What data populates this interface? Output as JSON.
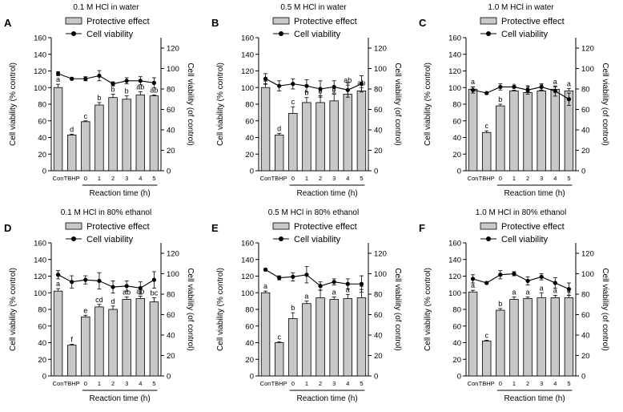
{
  "figure": {
    "legend": {
      "bar_label": "Protective effect",
      "line_label": "Cell viability"
    },
    "axes": {
      "left_label": "Cell viability (% control)",
      "right_label": "Cell viability (of control)",
      "x_label": "Reaction time (h)",
      "left_ticks": [
        "0",
        "20",
        "40",
        "60",
        "80",
        "100",
        "120",
        "140",
        "160"
      ],
      "right_ticks": [
        "0",
        "20",
        "40",
        "60",
        "80",
        "100",
        "120"
      ],
      "categories": [
        "Con",
        "TBHP",
        "0",
        "1",
        "2",
        "3",
        "4",
        "5"
      ]
    },
    "colors": {
      "bar_fill": "#c8c8c8",
      "line": "#000000"
    }
  },
  "chart_data": [
    {
      "type": "bar",
      "panel_label": "A",
      "title": "0.1 M HCl in water",
      "categories": [
        "Con",
        "TBHP",
        "0",
        "1",
        "2",
        "3",
        "4",
        "5"
      ],
      "ylim": [
        0,
        160
      ],
      "y2lim": [
        0,
        120
      ],
      "series": [
        {
          "name": "Protective effect",
          "axis": "left",
          "values": [
            100,
            43,
            59,
            79,
            88,
            86,
            91,
            90
          ],
          "errors": [
            4,
            1,
            1,
            3,
            4,
            4,
            4,
            1
          ],
          "labels": [
            "a",
            "d",
            "c",
            "b",
            "b",
            "b",
            "ab",
            "ab"
          ]
        },
        {
          "name": "Cell viability",
          "axis": "right",
          "points_at": [
            "Con",
            "TBHP",
            "0",
            "1",
            "2",
            "3",
            "4",
            "5"
          ],
          "values": [
            95,
            90,
            90,
            93,
            85,
            88,
            88,
            86
          ],
          "errors": [
            2,
            1,
            2,
            5,
            2,
            3,
            4,
            5
          ]
        }
      ]
    },
    {
      "type": "bar",
      "panel_label": "B",
      "title": "0.5 M HCl in water",
      "categories": [
        "Con",
        "TBHP",
        "0",
        "1",
        "2",
        "3",
        "4",
        "5"
      ],
      "ylim": [
        0,
        160
      ],
      "y2lim": [
        0,
        120
      ],
      "series": [
        {
          "name": "Protective effect",
          "axis": "left",
          "values": [
            100,
            43,
            69,
            82,
            82,
            84,
            92,
            96
          ],
          "errors": [
            4,
            2,
            8,
            6,
            8,
            8,
            11,
            4
          ],
          "labels": [
            "a",
            "d",
            "c",
            "b",
            "b",
            "b",
            "ab",
            "ab"
          ]
        },
        {
          "name": "Cell viability",
          "axis": "right",
          "points_at": [
            "Con",
            "TBHP",
            "0",
            "1",
            "2",
            "3",
            "4",
            "5"
          ],
          "values": [
            90,
            83,
            85,
            83,
            80,
            82,
            79,
            85
          ],
          "errors": [
            5,
            5,
            5,
            6,
            8,
            6,
            7,
            8
          ]
        }
      ]
    },
    {
      "type": "bar",
      "panel_label": "C",
      "title": "1.0 M HCl in water",
      "categories": [
        "Con",
        "TBHP",
        "0",
        "1",
        "2",
        "3",
        "4",
        "5"
      ],
      "ylim": [
        0,
        160
      ],
      "y2lim": [
        0,
        120
      ],
      "series": [
        {
          "name": "Protective effect",
          "axis": "left",
          "values": [
            98,
            46,
            78,
            96,
            94,
            96,
            98,
            96
          ],
          "errors": [
            3,
            2,
            2,
            1,
            1,
            1,
            3,
            3
          ],
          "labels": [
            "a",
            "c",
            "b",
            "a",
            "a",
            "a",
            "a",
            "a"
          ]
        },
        {
          "name": "Cell viability",
          "axis": "right",
          "points_at": [
            "Con",
            "TBHP",
            "0",
            "1",
            "2",
            "3",
            "4",
            "5"
          ],
          "values": [
            79,
            76,
            82,
            82,
            79,
            82,
            78,
            70
          ],
          "errors": [
            3,
            1,
            3,
            1,
            4,
            3,
            5,
            6
          ]
        }
      ]
    },
    {
      "type": "bar",
      "panel_label": "D",
      "title": "0.1 M HCl in 80% ethanol",
      "categories": [
        "Con",
        "TBHP",
        "0",
        "1",
        "2",
        "3",
        "4",
        "5"
      ],
      "ylim": [
        0,
        160
      ],
      "y2lim": [
        0,
        120
      ],
      "series": [
        {
          "name": "Protective effect",
          "axis": "left",
          "values": [
            102,
            37,
            71,
            83,
            80,
            92,
            93,
            89
          ],
          "errors": [
            3,
            1,
            2,
            3,
            4,
            3,
            3,
            5
          ],
          "labels": [
            "a",
            "f",
            "e",
            "cd",
            "d",
            "ab",
            "ab",
            "bc"
          ]
        },
        {
          "name": "Cell viability",
          "axis": "right",
          "points_at": [
            "Con",
            "TBHP",
            "0",
            "1",
            "2",
            "3",
            "4",
            "5"
          ],
          "values": [
            99,
            92,
            94,
            93,
            87,
            88,
            86,
            94
          ],
          "errors": [
            4,
            6,
            4,
            8,
            6,
            5,
            6,
            8
          ]
        }
      ]
    },
    {
      "type": "bar",
      "panel_label": "E",
      "title": "0.5 M HCl in 80% ethanol",
      "categories": [
        "Con",
        "TBHP",
        "0",
        "1",
        "2",
        "3",
        "4",
        "5"
      ],
      "ylim": [
        0,
        160
      ],
      "y2lim": [
        0,
        120
      ],
      "series": [
        {
          "name": "Protective effect",
          "axis": "left",
          "values": [
            100,
            40,
            69,
            87,
            94,
            92,
            93,
            94
          ],
          "errors": [
            2,
            1,
            7,
            3,
            9,
            3,
            5,
            10
          ],
          "labels": [
            "a",
            "c",
            "b",
            "a",
            "a",
            "a",
            "a",
            "a"
          ]
        },
        {
          "name": "Cell viability",
          "axis": "right",
          "points_at": [
            "Con",
            "TBHP",
            "0",
            "1",
            "2",
            "3",
            "4",
            "5"
          ],
          "values": [
            104,
            96,
            97,
            99,
            88,
            92,
            90,
            90
          ],
          "errors": [
            1,
            2,
            4,
            8,
            4,
            3,
            5,
            8
          ]
        }
      ]
    },
    {
      "type": "bar",
      "panel_label": "F",
      "title": "1.0 M HCl in 80% ethanol",
      "categories": [
        "Con",
        "TBHP",
        "0",
        "1",
        "2",
        "3",
        "4",
        "5"
      ],
      "ylim": [
        0,
        160
      ],
      "y2lim": [
        0,
        120
      ],
      "series": [
        {
          "name": "Protective effect",
          "axis": "left",
          "values": [
            101,
            42,
            79,
            92,
            93,
            94,
            94,
            94
          ],
          "errors": [
            2,
            1,
            2,
            3,
            2,
            6,
            3,
            3
          ],
          "labels": [
            "a",
            "c",
            "b",
            "a",
            "a",
            "a",
            "a",
            "a"
          ]
        },
        {
          "name": "Cell viability",
          "axis": "right",
          "points_at": [
            "Con",
            "TBHP",
            "0",
            "1",
            "2",
            "3",
            "4",
            "5"
          ],
          "values": [
            95,
            91,
            99,
            100,
            93,
            97,
            91,
            85
          ],
          "errors": [
            4,
            1,
            4,
            2,
            4,
            3,
            5,
            6
          ]
        }
      ]
    }
  ]
}
